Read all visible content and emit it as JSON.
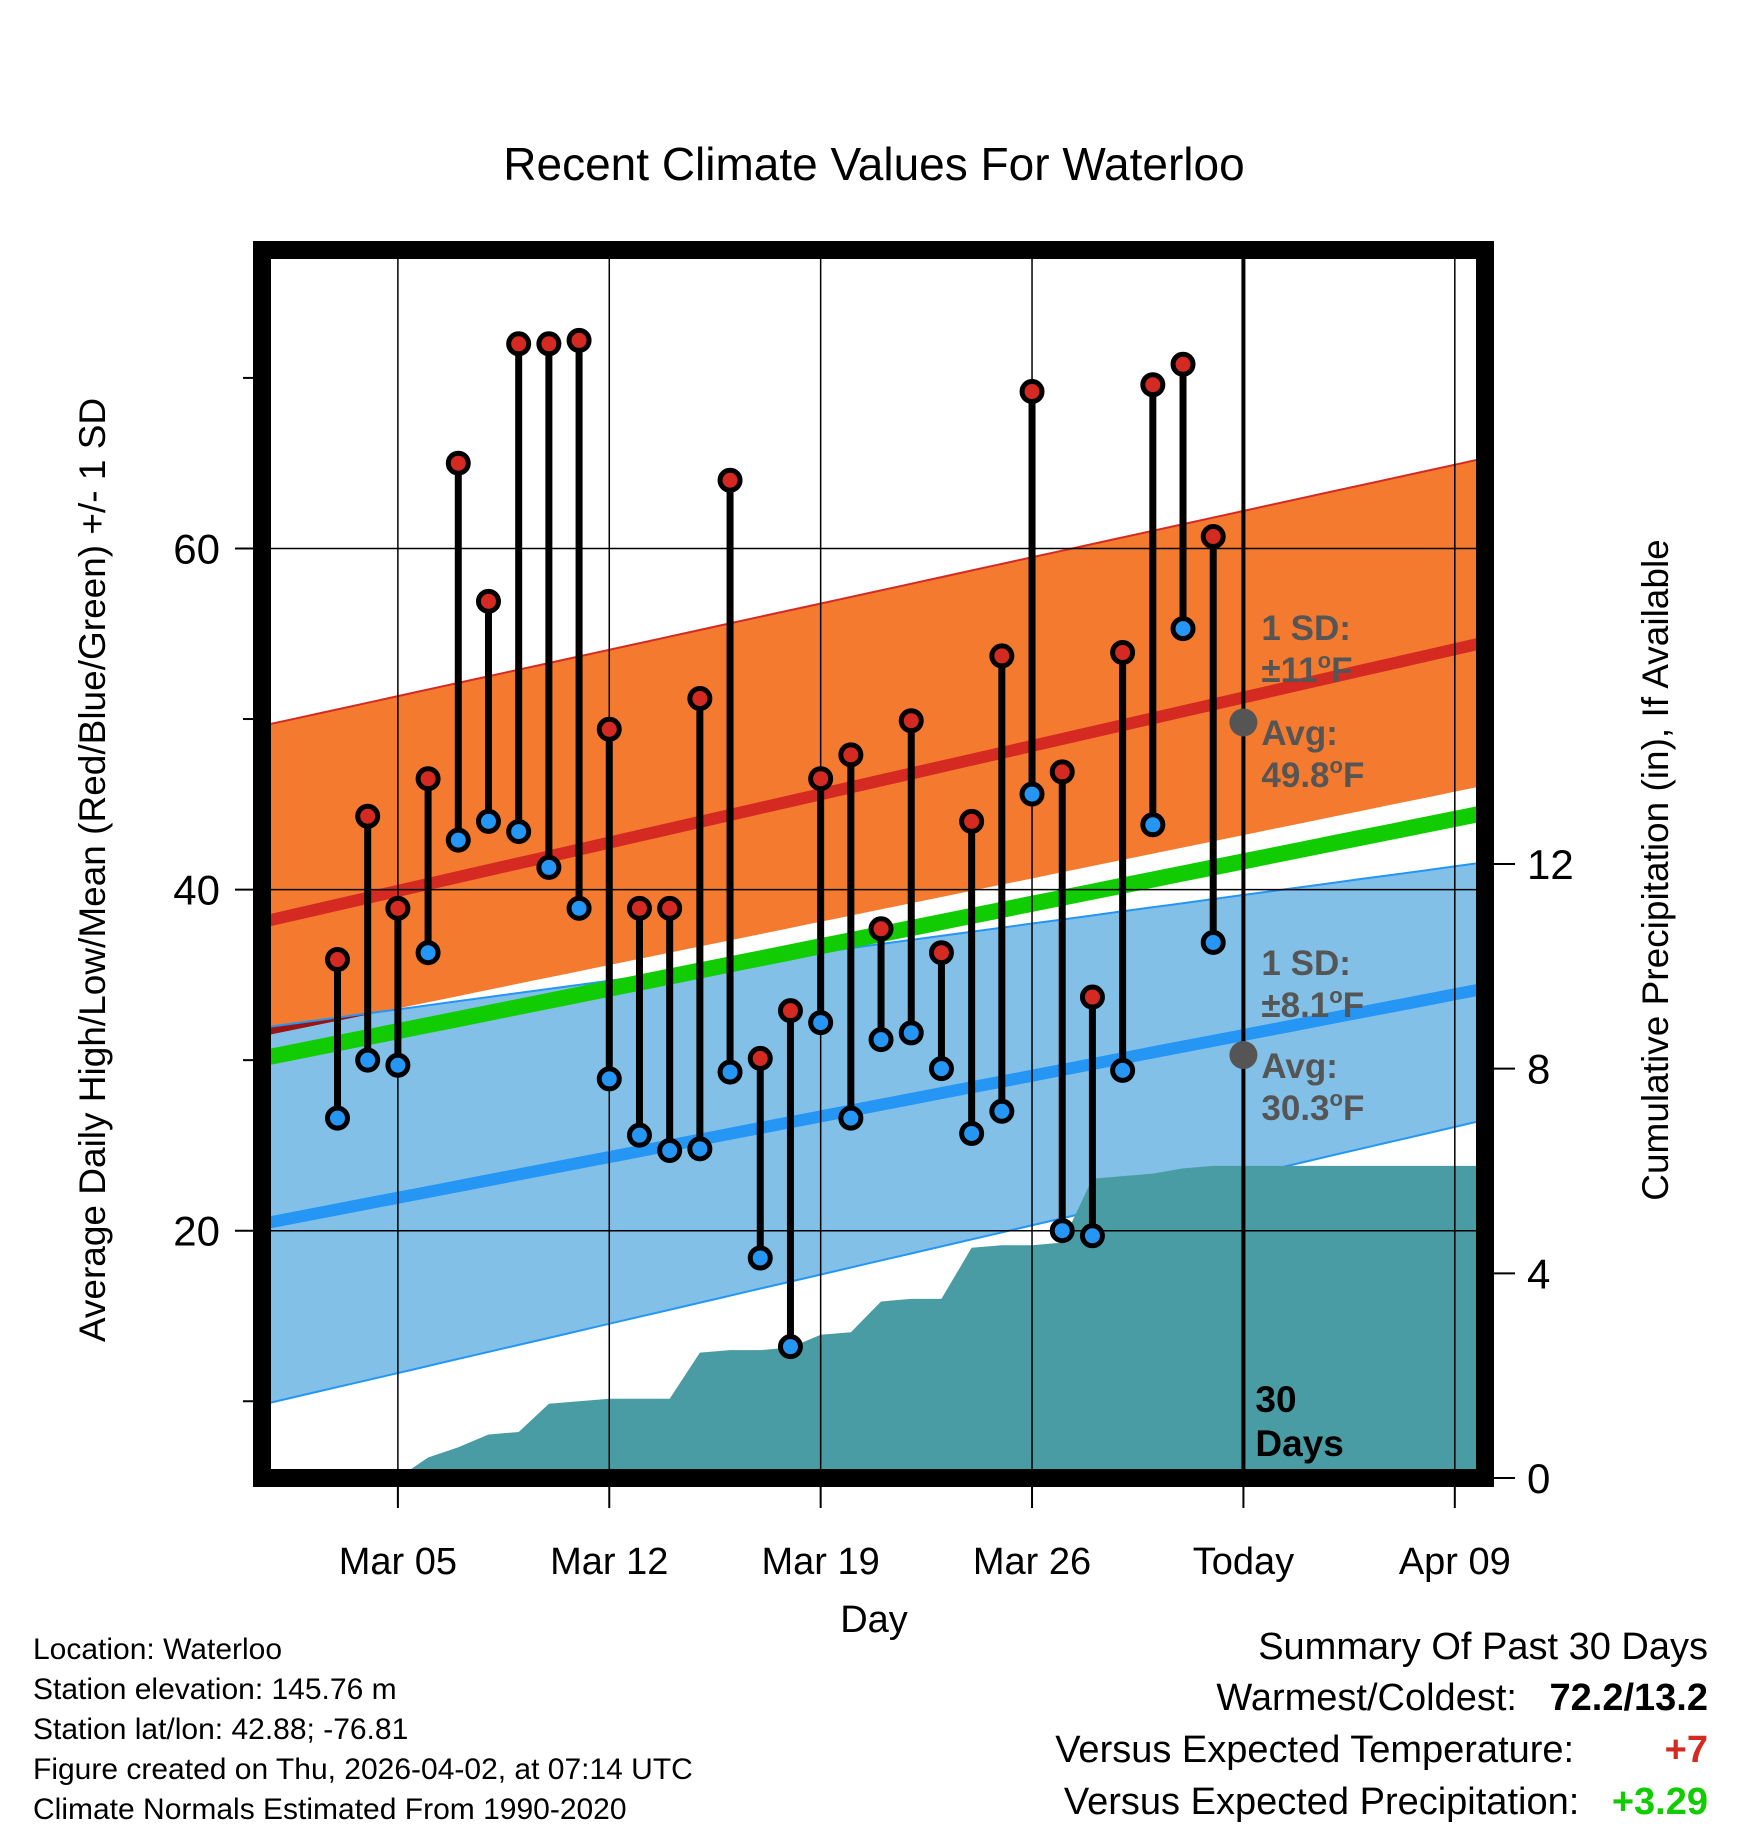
{
  "chart_data": {
    "type": "line",
    "title": "Recent Climate Values For Waterloo",
    "xlabel": "Day",
    "ylabel": "Average Daily High/Low/Mean (Red/Blue/Green) +/- 1 SD",
    "y2label": "Cumulative Precipitation (in), If Available",
    "x_range": [
      -2.5,
      38
    ],
    "ylim": [
      5.5,
      77.5
    ],
    "y_ticks": [
      20,
      40,
      60
    ],
    "y2lim": [
      0,
      24
    ],
    "y2_ticks": [
      0,
      4,
      8,
      12
    ],
    "x_ticks": [
      {
        "day": 2,
        "label": "Mar 05"
      },
      {
        "day": 9,
        "label": "Mar 12"
      },
      {
        "day": 16,
        "label": "Mar 19"
      },
      {
        "day": 23,
        "label": "Mar 26"
      },
      {
        "day": 30,
        "label": "Today"
      },
      {
        "day": 37,
        "label": "Apr 09"
      }
    ],
    "today_day": 30,
    "window_label": [
      "30",
      "Days"
    ],
    "days": [
      0,
      1,
      2,
      3,
      4,
      5,
      6,
      7,
      8,
      9,
      10,
      11,
      12,
      13,
      14,
      15,
      16,
      17,
      18,
      19,
      20,
      21,
      22,
      23,
      24,
      25,
      26,
      27,
      28,
      29
    ],
    "highs": [
      35.9,
      44.3,
      38.9,
      46.5,
      65.0,
      56.9,
      72.0,
      72.0,
      72.2,
      49.4,
      38.9,
      38.9,
      51.2,
      64.0,
      30.1,
      32.9,
      46.5,
      47.9,
      37.7,
      49.9,
      36.3,
      44.0,
      53.7,
      69.2,
      46.9,
      33.7,
      53.9,
      69.6,
      70.8,
      60.7
    ],
    "lows": [
      26.6,
      30.0,
      29.7,
      36.3,
      42.9,
      44.0,
      43.4,
      41.3,
      38.9,
      28.9,
      25.6,
      24.7,
      24.8,
      29.3,
      18.4,
      13.2,
      32.2,
      26.6,
      31.2,
      31.6,
      29.5,
      25.7,
      27.0,
      45.6,
      20.0,
      19.7,
      29.4,
      43.8,
      55.3,
      36.9
    ],
    "normal_high_avg": [
      38.1,
      54.5
    ],
    "normal_high_sd_upper": [
      49.6,
      65.3
    ],
    "normal_high_sd_lower": [
      31.4,
      46.1
    ],
    "normal_low_avg": [
      20.4,
      34.2
    ],
    "normal_low_sd_upper": [
      31.9,
      41.6
    ],
    "normal_low_sd_lower": [
      9.8,
      26.5
    ],
    "normal_mean": [
      30.1,
      44.5
    ],
    "precip_cumulative": [
      0,
      0,
      0,
      0.4,
      0.6,
      0.85,
      0.9,
      1.45,
      1.5,
      1.55,
      1.55,
      1.55,
      2.45,
      2.5,
      2.5,
      2.55,
      2.8,
      2.85,
      3.45,
      3.5,
      3.5,
      4.5,
      4.55,
      4.55,
      4.6,
      5.85,
      5.9,
      5.95,
      6.05,
      6.1
    ],
    "annotations": {
      "high": {
        "sd_title": "1 SD:",
        "sd_value": "±11",
        "avg_title": "Avg:",
        "avg_value": "49.8",
        "unit_deg": "o",
        "unit_f": "F",
        "avg": 49.8
      },
      "low": {
        "sd_title": "1 SD:",
        "sd_value": "±8.1",
        "avg_title": "Avg:",
        "avg_value": "30.3",
        "unit_deg": "o",
        "unit_f": "F",
        "avg": 30.3
      }
    },
    "colors": {
      "high_band": "#f47a2f",
      "high_line": "#d42a22",
      "low_band": "#82c0e8",
      "low_line": "#2596f4",
      "mean_line": "#11cc00",
      "overlap": "#9a1414",
      "precip": "#4a9ca4",
      "high_dot": "#d42a22",
      "low_dot": "#2596f4",
      "annot": "#555555"
    }
  },
  "info": {
    "location": "Location: Waterloo",
    "elevation": "Station elevation: 145.76 m",
    "latlon": "Station lat/lon: 42.88; -76.81",
    "created": "Figure created on Thu, 2026-04-02, at 07:14 UTC",
    "normals": "Climate Normals Estimated From 1990-2020"
  },
  "summary": {
    "heading": "Summary Of Past 30 Days",
    "warmest_label": "Warmest/Coldest:",
    "warmest_value": "72.2/13.2",
    "temp_label": "Versus Expected Temperature:",
    "temp_value": "+7",
    "temp_color": "#d42a22",
    "precip_label": "Versus Expected Precipitation:",
    "precip_value": "+3.29",
    "precip_color": "#11cc00"
  }
}
